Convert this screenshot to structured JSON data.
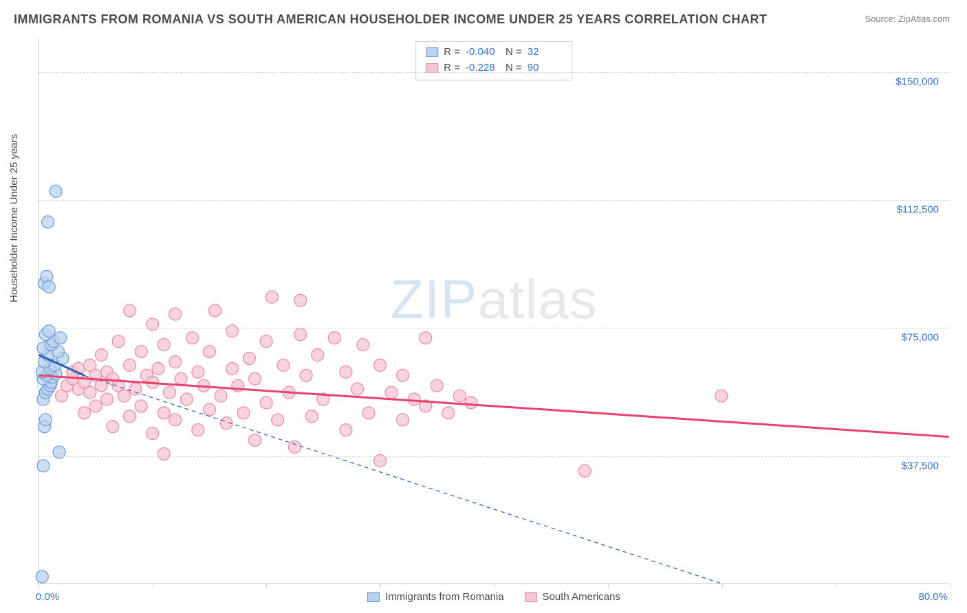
{
  "title": "IMMIGRANTS FROM ROMANIA VS SOUTH AMERICAN HOUSEHOLDER INCOME UNDER 25 YEARS CORRELATION CHART",
  "source": "Source: ZipAtlas.com",
  "ylabel": "Householder Income Under 25 years",
  "watermark_zip": "ZIP",
  "watermark_atlas": "atlas",
  "chart": {
    "type": "scatter",
    "xlim": [
      0,
      80
    ],
    "ylim": [
      0,
      160000
    ],
    "x_min_label": "0.0%",
    "x_max_label": "80.0%",
    "yticks": [
      37500,
      75000,
      112500,
      150000
    ],
    "ytick_labels": [
      "$37,500",
      "$75,000",
      "$112,500",
      "$150,000"
    ],
    "xtick_positions": [
      0,
      10,
      20,
      30,
      40,
      50,
      60,
      70,
      80
    ],
    "grid_color": "#d8d8d8",
    "axis_color": "#cccccc",
    "background_color": "#ffffff",
    "tick_label_color": "#3773c8",
    "series": [
      {
        "name": "Immigrants from Romania",
        "marker_fill": "#b9d1ee",
        "marker_stroke": "#6b9bd8",
        "marker_radius": 9,
        "marker_opacity": 0.75,
        "trend_color": "#2f5fb0",
        "trend_width": 3,
        "trend_dash": "6 5",
        "trend_start": [
          0,
          67000
        ],
        "trend_end": [
          4,
          61000
        ],
        "trend_ext_end": [
          60,
          0
        ],
        "R": "-0.040",
        "N": "32",
        "points": [
          [
            0.3,
            2000
          ],
          [
            0.4,
            34500
          ],
          [
            1.8,
            38500
          ],
          [
            0.5,
            46000
          ],
          [
            0.6,
            48000
          ],
          [
            0.4,
            54000
          ],
          [
            0.6,
            56000
          ],
          [
            0.8,
            57000
          ],
          [
            1.0,
            58000
          ],
          [
            1.1,
            59000
          ],
          [
            0.4,
            60000
          ],
          [
            1.2,
            60500
          ],
          [
            0.7,
            61000
          ],
          [
            1.5,
            61500
          ],
          [
            0.3,
            62000
          ],
          [
            1.0,
            63000
          ],
          [
            1.4,
            64000
          ],
          [
            0.5,
            65000
          ],
          [
            2.1,
            66000
          ],
          [
            0.8,
            67000
          ],
          [
            1.7,
            68000
          ],
          [
            0.4,
            69000
          ],
          [
            1.1,
            70000
          ],
          [
            1.3,
            71000
          ],
          [
            1.9,
            72000
          ],
          [
            0.6,
            73000
          ],
          [
            0.9,
            74000
          ],
          [
            0.5,
            88000
          ],
          [
            0.7,
            90000
          ],
          [
            0.8,
            106000
          ],
          [
            1.5,
            115000
          ],
          [
            0.9,
            87000
          ]
        ]
      },
      {
        "name": "South Americans",
        "marker_fill": "#f7c6d4",
        "marker_stroke": "#e88aa5",
        "marker_radius": 9,
        "marker_opacity": 0.75,
        "trend_color": "#e8416e",
        "trend_width": 3,
        "trend_dash": "",
        "trend_start": [
          0,
          61000
        ],
        "trend_end": [
          80,
          43000
        ],
        "R": "-0.228",
        "N": "90",
        "points": [
          [
            2,
            55000
          ],
          [
            2.5,
            58000
          ],
          [
            3,
            60000
          ],
          [
            3,
            62000
          ],
          [
            3.5,
            57000
          ],
          [
            3.5,
            63000
          ],
          [
            4,
            50000
          ],
          [
            4,
            59000
          ],
          [
            4.5,
            56000
          ],
          [
            4.5,
            64000
          ],
          [
            5,
            52000
          ],
          [
            5,
            61000
          ],
          [
            5.5,
            58000
          ],
          [
            5.5,
            67000
          ],
          [
            6,
            54000
          ],
          [
            6,
            62000
          ],
          [
            6.5,
            46000
          ],
          [
            6.5,
            60000
          ],
          [
            7,
            58000
          ],
          [
            7,
            71000
          ],
          [
            7.5,
            55000
          ],
          [
            8,
            49000
          ],
          [
            8,
            64000
          ],
          [
            8,
            80000
          ],
          [
            8.5,
            57000
          ],
          [
            9,
            52000
          ],
          [
            9,
            68000
          ],
          [
            9.5,
            61000
          ],
          [
            10,
            44000
          ],
          [
            10,
            59000
          ],
          [
            10,
            76000
          ],
          [
            10.5,
            63000
          ],
          [
            11,
            50000
          ],
          [
            11,
            70000
          ],
          [
            11.5,
            56000
          ],
          [
            12,
            48000
          ],
          [
            12,
            65000
          ],
          [
            12,
            79000
          ],
          [
            12.5,
            60000
          ],
          [
            13,
            54000
          ],
          [
            13.5,
            72000
          ],
          [
            14,
            45000
          ],
          [
            14,
            62000
          ],
          [
            14.5,
            58000
          ],
          [
            15,
            51000
          ],
          [
            15,
            68000
          ],
          [
            15.5,
            80000
          ],
          [
            16,
            55000
          ],
          [
            16.5,
            47000
          ],
          [
            17,
            63000
          ],
          [
            17,
            74000
          ],
          [
            17.5,
            58000
          ],
          [
            18,
            50000
          ],
          [
            18.5,
            66000
          ],
          [
            19,
            42000
          ],
          [
            19,
            60000
          ],
          [
            20,
            53000
          ],
          [
            20,
            71000
          ],
          [
            20.5,
            84000
          ],
          [
            21,
            48000
          ],
          [
            21.5,
            64000
          ],
          [
            22,
            56000
          ],
          [
            22.5,
            40000
          ],
          [
            23,
            73000
          ],
          [
            23,
            83000
          ],
          [
            23.5,
            61000
          ],
          [
            24,
            49000
          ],
          [
            24.5,
            67000
          ],
          [
            25,
            54000
          ],
          [
            26,
            72000
          ],
          [
            27,
            45000
          ],
          [
            27,
            62000
          ],
          [
            28,
            57000
          ],
          [
            28.5,
            70000
          ],
          [
            29,
            50000
          ],
          [
            30,
            64000
          ],
          [
            30,
            36000
          ],
          [
            31,
            56000
          ],
          [
            32,
            48000
          ],
          [
            32,
            61000
          ],
          [
            33,
            54000
          ],
          [
            34,
            52000
          ],
          [
            34,
            72000
          ],
          [
            35,
            58000
          ],
          [
            36,
            50000
          ],
          [
            37,
            55000
          ],
          [
            38,
            53000
          ],
          [
            48,
            33000
          ],
          [
            60,
            55000
          ],
          [
            11,
            38000
          ]
        ]
      }
    ]
  },
  "legend_bottom": [
    {
      "label": "Immigrants from Romania",
      "fill": "#b9d1ee",
      "stroke": "#6b9bd8"
    },
    {
      "label": "South Americans",
      "fill": "#f7c6d4",
      "stroke": "#e88aa5"
    }
  ]
}
